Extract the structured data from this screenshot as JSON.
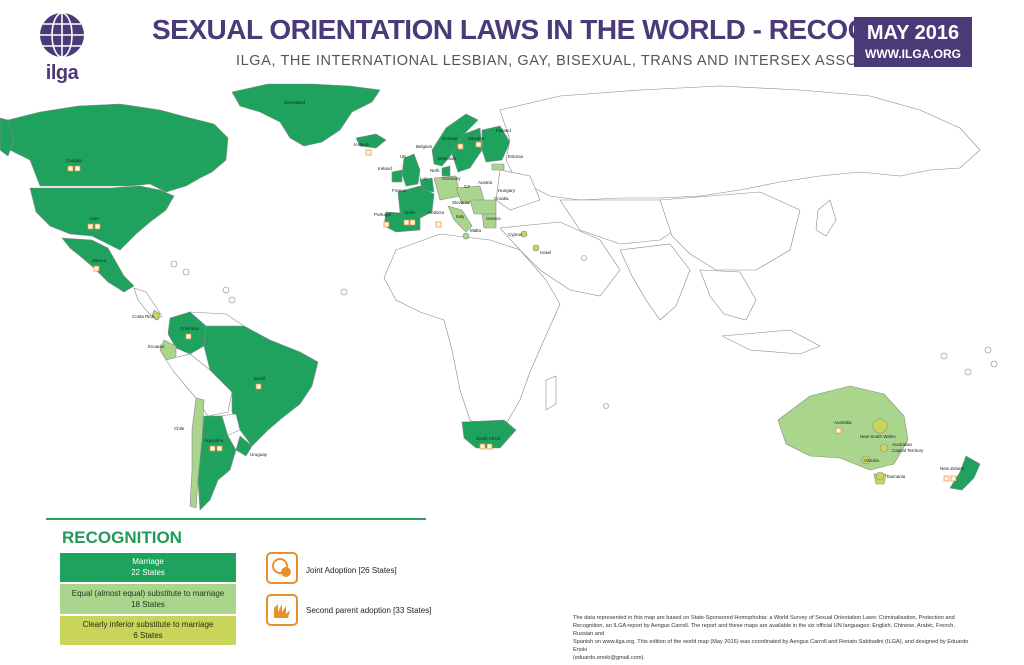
{
  "logo": {
    "text": "ilga"
  },
  "header": {
    "title": "SEXUAL ORIENTATION LAWS IN THE WORLD - RECOGNITION",
    "subtitle": "ILGA, THE INTERNATIONAL LESBIAN, GAY, BISEXUAL, TRANS AND INTERSEX ASSOCIATION",
    "date": "MAY 2016",
    "website": "WWW.ILGA.ORG"
  },
  "colors": {
    "marriage": "#1fa25e",
    "equal_substitute": "#a9d58d",
    "inferior_substitute": "#c9d55a",
    "brand": "#4b3a78",
    "adoption_icon": "#e8902a"
  },
  "map_labels": {
    "greenland": "Greenland",
    "canada": "Canada",
    "usa": "USA",
    "mexico": "Mexico",
    "costa_rica": "Costa Rica",
    "colombia": "Colombia",
    "ecuador": "Ecuador",
    "brazil": "Brazil",
    "chile": "Chile",
    "argentina": "Argentina",
    "uruguay": "Uruguay",
    "iceland": "Iceland",
    "norway": "Norway",
    "sweden": "Sweden",
    "finland": "Finland",
    "estonia": "Estonia",
    "denmark": "Denmark",
    "uk": "UK",
    "ireland": "Ireland",
    "belgium": "Belgium",
    "neth": "Neth.",
    "lux": "Lux.",
    "germany": "Germany",
    "france": "France",
    "cz": "CZ",
    "austria": "Austria",
    "hungary": "Hungary",
    "croatia": "Croatia",
    "slovenia": "Slovenia",
    "andorra": "Andorra",
    "portugal": "Portugal",
    "spain": "Spain",
    "italy": "Italy",
    "malta": "Malta",
    "greece": "Greece",
    "cyprus": "Cyprus",
    "israel": "Israel",
    "south_africa": "South Africa",
    "australia": "Australia",
    "new_south_wales": "New South Wales",
    "act": "Australian",
    "act2": "Capital Territory",
    "victoria": "Victoria",
    "tasmania": "Tasmania",
    "new_zealand": "New Zeland"
  },
  "legend": {
    "title": "RECOGNITION",
    "marriage_label": "Marriage",
    "marriage_count": "22 States",
    "equal_label": "Equal (almost equal) substitute to marriage",
    "equal_count": "18 States",
    "inferior_label": "Clearly inferior substitute to marriage",
    "inferior_count": "6 States",
    "joint_adoption": "Joint Adoption [26 States]",
    "second_parent": "Second parent adoption [33 States]"
  },
  "footnote": {
    "line1": "The data represented in this map are based on State-Sponsored Homophobia: a World Survey of Sexual Orientation Laws: Criminalisation, Protection and",
    "line2": "Recognition, an ILGA report by Aengus Carroll. The report and these maps are available in the six official UN languages: English, Chinese, Arabic, French, Russian and",
    "line3": "Spanish on www.ilga.org. This edition of the world map (May 2016) was coordinated by Aengus Carroll and Renato Sabbadini (ILGA), and designed by Eduardo Enoki",
    "line4": "(eduardo.enoki@gmail.com)."
  }
}
